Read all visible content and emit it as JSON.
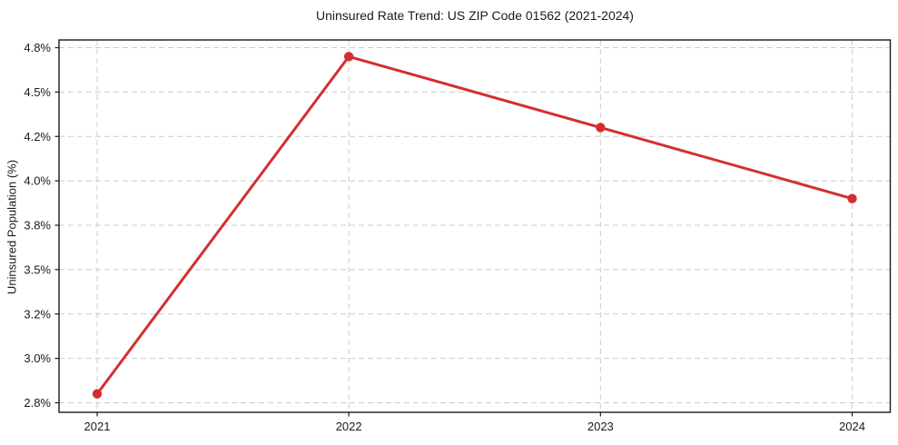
{
  "chart_data": {
    "type": "line",
    "title": "Uninsured Rate Trend: US ZIP Code 01562 (2021-2024)",
    "xlabel": "",
    "ylabel": "Uninsured Population (%)",
    "categories": [
      "2021",
      "2022",
      "2023",
      "2024"
    ],
    "values": [
      2.84,
      4.74,
      4.26,
      3.92
    ],
    "ytick_values": [
      2.8,
      3.0,
      3.2,
      3.5,
      3.8,
      4.0,
      4.2,
      4.5,
      4.8
    ],
    "ytick_labels": [
      "2.8%",
      "3.0%",
      "3.2%",
      "3.5%",
      "3.8%",
      "4.0%",
      "4.2%",
      "4.5%",
      "4.8%"
    ],
    "ylim_labels": [
      "2.8%",
      "4.8%"
    ],
    "marker": "circle",
    "grid": true,
    "grid_style": "dashed",
    "legend": "none",
    "colors": {
      "line": "#d32f2f",
      "marker": "#d32f2f",
      "grid": "#cccccc",
      "axis": "#1a1a1a",
      "text": "#1a1a1a",
      "background": "#ffffff"
    }
  }
}
